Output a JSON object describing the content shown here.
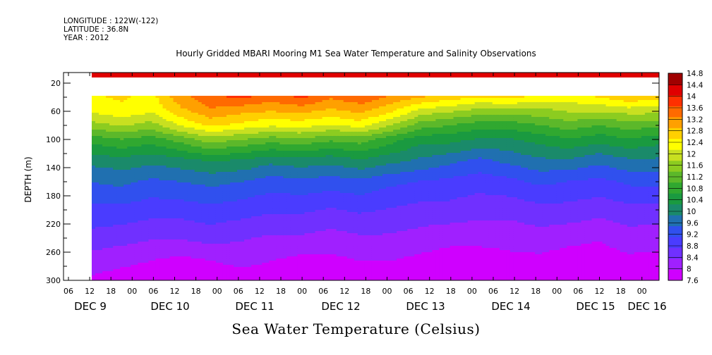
{
  "header": {
    "longitude": "LONGITUDE : 122W(-122)",
    "latitude": "LATITUDE : 36.8N",
    "year": "YEAR : 2012"
  },
  "chart_data": {
    "type": "heatmap",
    "title": "Hourly Gridded MBARI Mooring M1 Sea Water Temperature and Salinity Observations",
    "subtitle": "Sea Water Temperature (Celsius)",
    "ylabel": "DEPTH (m)",
    "xlabel": "",
    "y_range": [
      300,
      5
    ],
    "y_tick_labels": [
      "20",
      "60",
      "100",
      "140",
      "180",
      "220",
      "260",
      "300"
    ],
    "x_hour_labels": [
      "06",
      "12",
      "18",
      "00",
      "06",
      "12",
      "18",
      "00",
      "06",
      "12",
      "18",
      "00",
      "06",
      "12",
      "18",
      "00",
      "06",
      "12",
      "18",
      "00",
      "06",
      "12",
      "18",
      "00",
      "06",
      "12",
      "18",
      "00",
      "06",
      "12",
      "18",
      "00"
    ],
    "x_day_labels": [
      "DEC  9",
      "DEC 10",
      "DEC 11",
      "DEC 12",
      "DEC 13",
      "DEC 14",
      "DEC 15",
      "DEC 16"
    ],
    "data_start": "DEC 9 12:00",
    "surface_band_depth_m": [
      5,
      12
    ],
    "surface_band_value": 14.3,
    "no_data_depth_m": [
      12,
      38
    ],
    "colorbar": {
      "labels": [
        "14.8",
        "14.4",
        "14",
        "13.6",
        "13.2",
        "12.8",
        "12.4",
        "12",
        "11.6",
        "11.2",
        "10.8",
        "10.4",
        "10",
        "9.6",
        "9.2",
        "8.8",
        "8.4",
        "8",
        "7.6"
      ],
      "min": 7.6,
      "max": 14.8,
      "colors": [
        "#cf00ff",
        "#a020ff",
        "#7030ff",
        "#4a3cff",
        "#3050ee",
        "#2070b0",
        "#1a8a6a",
        "#1a9a40",
        "#30a830",
        "#5cb82a",
        "#8ccc20",
        "#c8e020",
        "#ffff00",
        "#ffd000",
        "#ffa000",
        "#ff6a00",
        "#ff3000",
        "#e00000",
        "#a00000"
      ]
    },
    "legend": "right",
    "profiles": [
      {
        "depth": 38,
        "values": [
          12.5,
          12.6,
          12.4,
          13.2,
          13.6,
          13.8,
          13.5,
          13.8,
          13.4,
          13.6,
          13.3,
          13.0,
          12.8,
          12.6,
          12.7,
          12.5,
          12.4,
          12.6,
          12.9,
          12.7
        ]
      },
      {
        "depth": 60,
        "values": [
          12.2,
          12.4,
          12.2,
          12.8,
          13.2,
          13.0,
          12.9,
          13.0,
          12.8,
          13.0,
          12.6,
          12.0,
          11.8,
          11.6,
          11.6,
          11.6,
          11.8,
          11.8,
          11.9,
          11.9
        ]
      },
      {
        "depth": 80,
        "values": [
          11.6,
          11.8,
          11.6,
          12.2,
          12.6,
          12.4,
          12.2,
          12.3,
          12.1,
          12.3,
          11.8,
          11.2,
          11.0,
          10.8,
          10.8,
          11.0,
          11.2,
          11.0,
          11.2,
          11.1
        ]
      },
      {
        "depth": 100,
        "values": [
          10.8,
          11.0,
          10.8,
          11.2,
          11.6,
          11.4,
          11.2,
          11.3,
          11.1,
          11.2,
          10.8,
          10.4,
          10.4,
          10.2,
          10.2,
          10.4,
          10.6,
          10.4,
          10.6,
          10.4
        ]
      },
      {
        "depth": 130,
        "values": [
          10.0,
          10.1,
          10.0,
          10.1,
          10.3,
          10.2,
          10.0,
          10.1,
          10.0,
          10.2,
          10.0,
          9.8,
          9.6,
          9.4,
          9.6,
          9.8,
          9.8,
          9.6,
          9.8,
          9.8
        ]
      },
      {
        "depth": 160,
        "values": [
          9.5,
          9.6,
          9.4,
          9.5,
          9.6,
          9.5,
          9.3,
          9.4,
          9.3,
          9.4,
          9.2,
          9.1,
          9.0,
          8.9,
          9.0,
          9.2,
          9.1,
          9.0,
          9.2,
          9.2
        ]
      },
      {
        "depth": 200,
        "values": [
          9.0,
          9.0,
          8.9,
          8.9,
          9.0,
          8.9,
          8.8,
          8.8,
          8.7,
          8.8,
          8.7,
          8.6,
          8.6,
          8.5,
          8.5,
          8.6,
          8.6,
          8.5,
          8.6,
          8.6
        ]
      },
      {
        "depth": 240,
        "values": [
          8.6,
          8.5,
          8.4,
          8.4,
          8.5,
          8.4,
          8.3,
          8.3,
          8.2,
          8.3,
          8.3,
          8.2,
          8.1,
          8.1,
          8.1,
          8.2,
          8.1,
          8.0,
          8.2,
          8.1
        ]
      },
      {
        "depth": 270,
        "values": [
          8.2,
          8.1,
          8.0,
          7.9,
          8.0,
          8.1,
          8.0,
          7.9,
          7.9,
          8.0,
          8.0,
          7.9,
          7.8,
          7.8,
          7.9,
          7.9,
          7.8,
          7.8,
          7.9,
          7.9
        ]
      },
      {
        "depth": 300,
        "values": [
          7.9,
          7.8,
          7.7,
          7.7,
          7.7,
          7.8,
          7.8,
          7.7,
          7.7,
          7.7,
          7.8,
          7.7,
          7.6,
          7.6,
          7.7,
          7.7,
          7.6,
          7.6,
          7.7,
          7.7
        ]
      }
    ]
  }
}
